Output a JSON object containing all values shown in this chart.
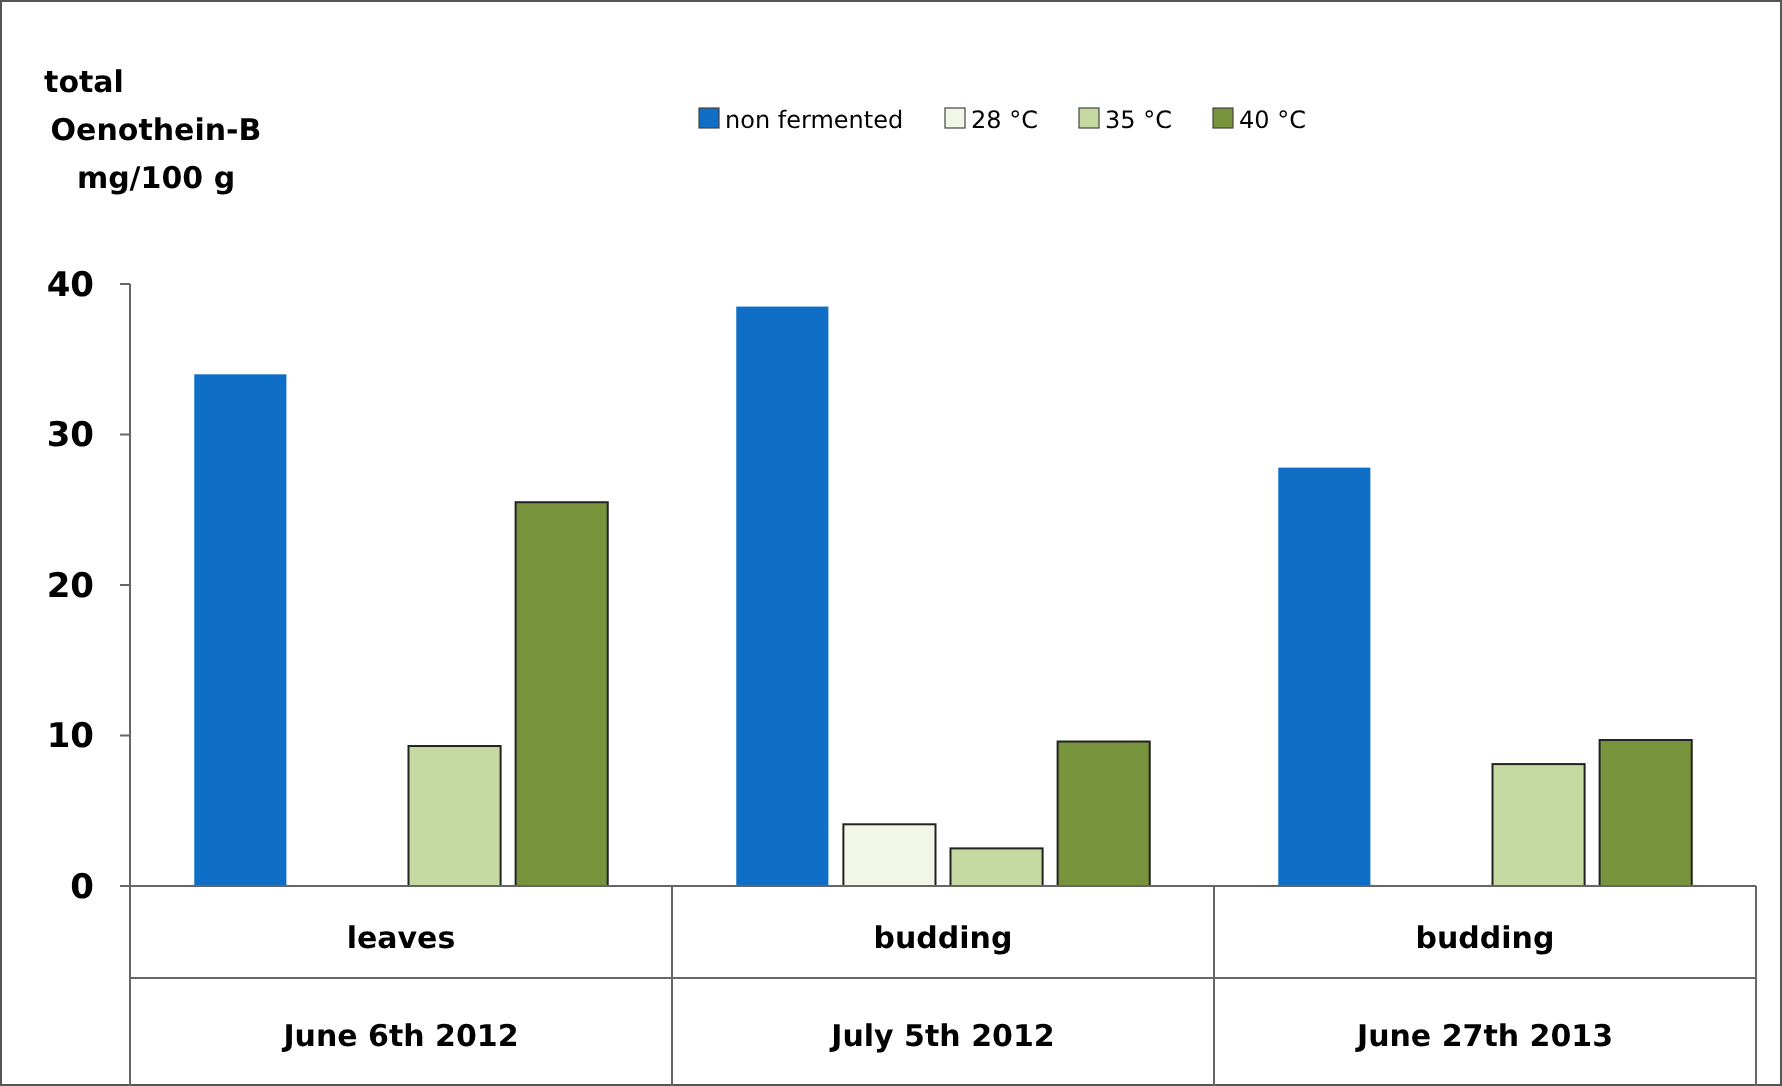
{
  "chart_data": {
    "type": "bar",
    "ylabel": "total\nOenothein-B\nmg/100 g",
    "categories": [
      "leaves\nJune 6th 2012",
      "budding\nJuly 5th 2012",
      "budding\nJune 27th 2013"
    ],
    "series": [
      {
        "name": "non fermented",
        "color": "#0f6fc6",
        "values": [
          34,
          38.5,
          27.8
        ]
      },
      {
        "name": "28 °C",
        "color": "#f2f6e6",
        "values": [
          null,
          4.1,
          null
        ]
      },
      {
        "name": "35 °C",
        "color": "#c6d9a0",
        "values": [
          9.3,
          2.5,
          8.1
        ]
      },
      {
        "name": "40 °C",
        "color": "#77933c",
        "values": [
          25.5,
          9.6,
          9.7
        ]
      }
    ],
    "ylim": [
      0,
      40
    ],
    "yticks": [
      0,
      10,
      20,
      30,
      40
    ],
    "legend": "top",
    "grid": false
  }
}
